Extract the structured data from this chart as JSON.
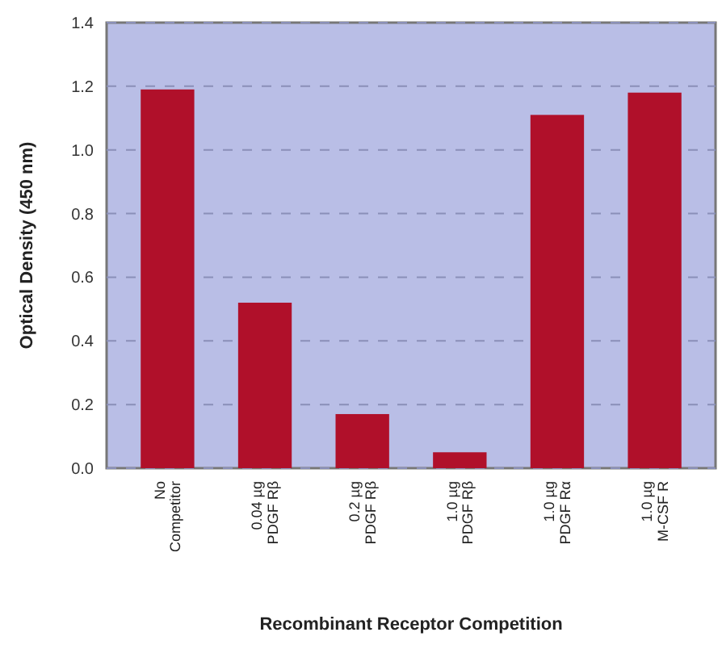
{
  "chart_data": {
    "type": "bar",
    "xlabel": "Recombinant Receptor Competition",
    "ylabel": "Optical Density (450 nm)",
    "categories": [
      "No Competitor",
      "0.04 µg PDGF Rβ",
      "0.2 µg PDGF Rβ",
      "1.0 µg PDGF Rβ",
      "1.0 µg PDGF Rα",
      "1.0 µg M-CSF R"
    ],
    "values": [
      1.19,
      0.52,
      0.17,
      0.05,
      1.11,
      1.18
    ],
    "color": "#b0102a",
    "ylim": [
      0,
      1.4
    ],
    "yticks": [
      {
        "value": 0,
        "label": "0.0"
      },
      0.2,
      0.4,
      0.6,
      0.8,
      {
        "value": 1,
        "label": "1.0"
      },
      1.2,
      1.4
    ],
    "grid": "y"
  }
}
